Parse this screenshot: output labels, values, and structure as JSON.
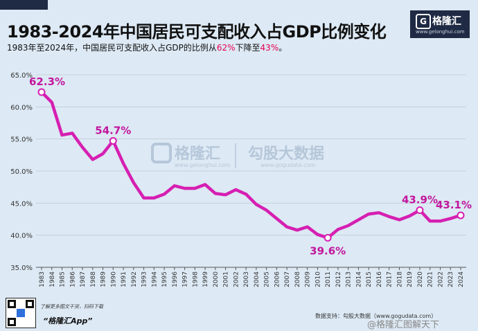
{
  "header": {
    "title": "1983-2024年中国居民可支配收入占GDP比例变化",
    "subtitle_prefix": "1983年至2024年，中国居民可支配收入占GDP的比例从",
    "subtitle_from": "62%",
    "subtitle_mid": "下降至",
    "subtitle_to": "43%",
    "subtitle_suffix": "。"
  },
  "logo": {
    "name": "格隆汇",
    "url": "www.gelonghui.com"
  },
  "watermark": {
    "brand": "格隆汇",
    "brand_url": "www.gelonghui.com",
    "partner": "勾股大数据",
    "partner_url": "www.gogudata.com"
  },
  "footer": {
    "qr_note": "了解更多图文干货，扫码下载",
    "app_name": "“格隆汇App”",
    "source": "数据支持：勾股大数据（www.gogudata.com）",
    "weibo": "@格隆汇图解天下"
  },
  "colors": {
    "line": "#d61fb2",
    "label": "#c2169e",
    "highlight": "#e5004f",
    "background": "#dde9f4"
  },
  "chart_data": {
    "type": "line",
    "title": "1983-2024年中国居民可支配收入占GDP比例变化",
    "x": [
      "1983",
      "1984",
      "1985",
      "1986",
      "1987",
      "1988",
      "1989",
      "1990",
      "1991",
      "1992",
      "1993",
      "1994",
      "1995",
      "1996",
      "1997",
      "1998",
      "1999",
      "2000",
      "2001",
      "2002",
      "2003",
      "2004",
      "2005",
      "2006",
      "2007",
      "2008",
      "2009",
      "2010",
      "2011",
      "2012",
      "2013",
      "2014",
      "2015",
      "2016",
      "2017",
      "2018",
      "2019",
      "2020",
      "2021",
      "2022",
      "2023",
      "2024"
    ],
    "values": [
      62.3,
      60.7,
      55.6,
      55.9,
      53.7,
      51.8,
      52.7,
      54.7,
      51.2,
      48.2,
      45.8,
      45.8,
      46.4,
      47.7,
      47.3,
      47.3,
      47.9,
      46.5,
      46.3,
      47.1,
      46.4,
      44.8,
      43.9,
      42.6,
      41.3,
      40.8,
      41.3,
      40.1,
      39.6,
      40.9,
      41.5,
      42.4,
      43.3,
      43.5,
      42.9,
      42.4,
      43.0,
      43.9,
      42.2,
      42.2,
      42.6,
      43.1
    ],
    "ylim": [
      35,
      65
    ],
    "yticks": [
      "65.0%",
      "60.0%",
      "55.0%",
      "50.0%",
      "45.0%",
      "40.0%",
      "35.0%"
    ],
    "ytick_values": [
      65,
      60,
      55,
      50,
      45,
      40,
      35
    ],
    "grid": true,
    "annotations": [
      {
        "index": 0,
        "label": "62.3%"
      },
      {
        "index": 7,
        "label": "54.7%"
      },
      {
        "index": 28,
        "label": "39.6%"
      },
      {
        "index": 37,
        "label": "43.9%"
      },
      {
        "index": 41,
        "label": "43.1%"
      }
    ]
  }
}
